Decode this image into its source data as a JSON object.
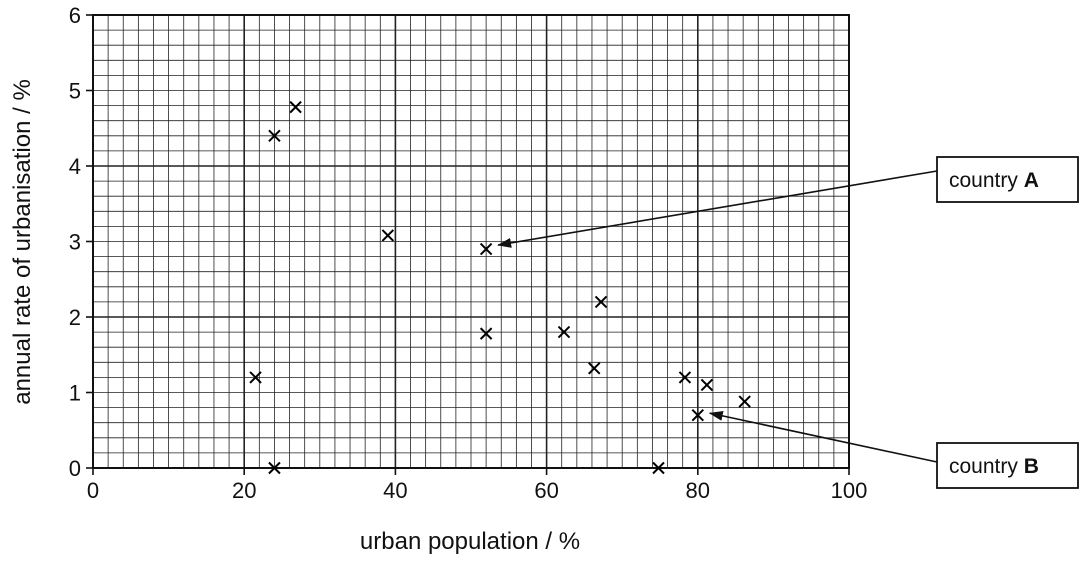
{
  "chart_data": {
    "type": "scatter",
    "title": "",
    "xlabel": "urban population / %",
    "ylabel": "annual rate of urbanisation / %",
    "xlim": [
      0,
      100
    ],
    "ylim": [
      0,
      6
    ],
    "x_ticks": [
      0,
      20,
      40,
      60,
      80,
      100
    ],
    "y_ticks": [
      0,
      1,
      2,
      3,
      4,
      5,
      6
    ],
    "x_tick_labels": [
      "0",
      "20",
      "40",
      "60",
      "80",
      "100"
    ],
    "y_tick_labels": [
      "0",
      "1",
      "2",
      "3",
      "4",
      "5",
      "6"
    ],
    "grid": true,
    "marker": "x",
    "points": [
      {
        "x": 24.0,
        "y": 4.4
      },
      {
        "x": 26.8,
        "y": 4.78
      },
      {
        "x": 39.0,
        "y": 3.08
      },
      {
        "x": 52.0,
        "y": 2.9
      },
      {
        "x": 52.0,
        "y": 1.78
      },
      {
        "x": 62.3,
        "y": 1.8
      },
      {
        "x": 67.2,
        "y": 2.2
      },
      {
        "x": 66.3,
        "y": 1.32
      },
      {
        "x": 21.5,
        "y": 1.2
      },
      {
        "x": 24.0,
        "y": 0.0
      },
      {
        "x": 78.3,
        "y": 1.2
      },
      {
        "x": 81.2,
        "y": 1.1
      },
      {
        "x": 86.2,
        "y": 0.88
      },
      {
        "x": 80.0,
        "y": 0.7
      },
      {
        "x": 74.8,
        "y": 0.0
      }
    ],
    "annotations": [
      {
        "prefix": "country ",
        "label": "A",
        "target": {
          "x": 52.0,
          "y": 2.9
        }
      },
      {
        "prefix": "country ",
        "label": "B",
        "target": {
          "x": 80.0,
          "y": 0.7
        }
      }
    ]
  }
}
